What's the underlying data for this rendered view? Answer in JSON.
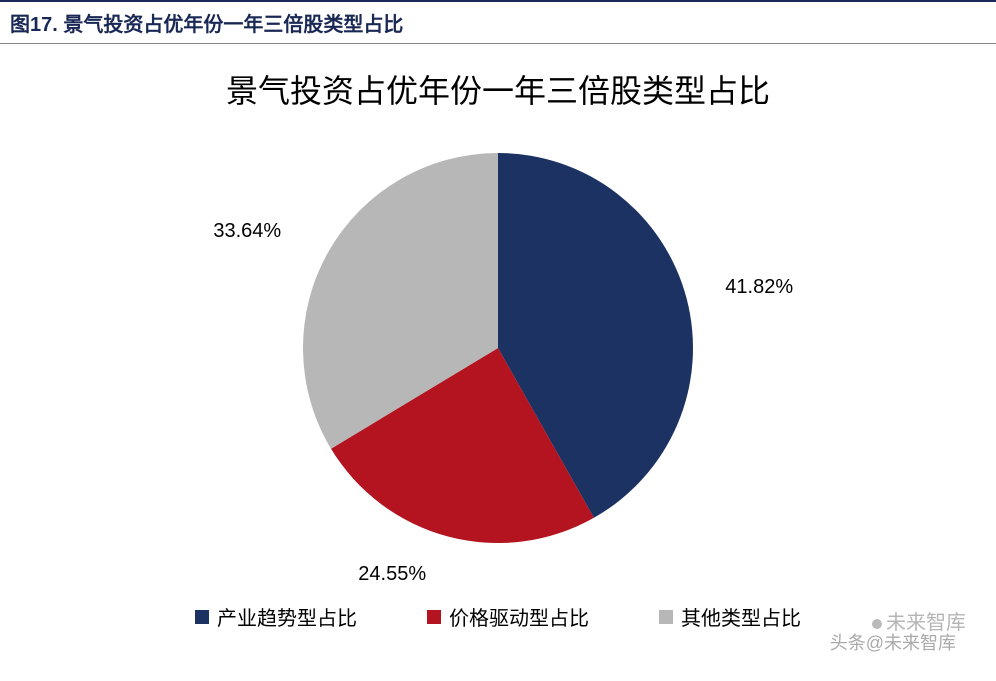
{
  "figure_header": "图17. 景气投资占优年份一年三倍股类型占比",
  "chart": {
    "type": "pie",
    "title": "景气投资占优年份一年三倍股类型占比",
    "title_fontsize": 32,
    "title_color": "#000000",
    "background_color": "#ffffff",
    "radius": 195,
    "start_angle_deg": -90,
    "explode": 0,
    "label_fontsize": 20,
    "label_color": "#000000",
    "slice_border_width": 0,
    "slices": [
      {
        "label": "产业趋势型占比",
        "value": 41.82,
        "display": "41.82%",
        "color": "#1c3262"
      },
      {
        "label": "价格驱动型占比",
        "value": 24.55,
        "display": "24.55%",
        "color": "#b31420"
      },
      {
        "label": "其他类型占比",
        "value": 33.64,
        "display": "33.64%",
        "color": "#b7b7b7"
      }
    ],
    "legend": {
      "position": "bottom",
      "fontsize": 20,
      "swatch_size": 14,
      "gap": 70
    }
  },
  "watermarks": {
    "line1": "未来智库",
    "line2": "头条@未来智库"
  },
  "header_style": {
    "top_border_color": "#1a2855",
    "bottom_border_color": "#888888",
    "text_color": "#1a2855",
    "fontsize": 20,
    "font_weight": "bold"
  }
}
